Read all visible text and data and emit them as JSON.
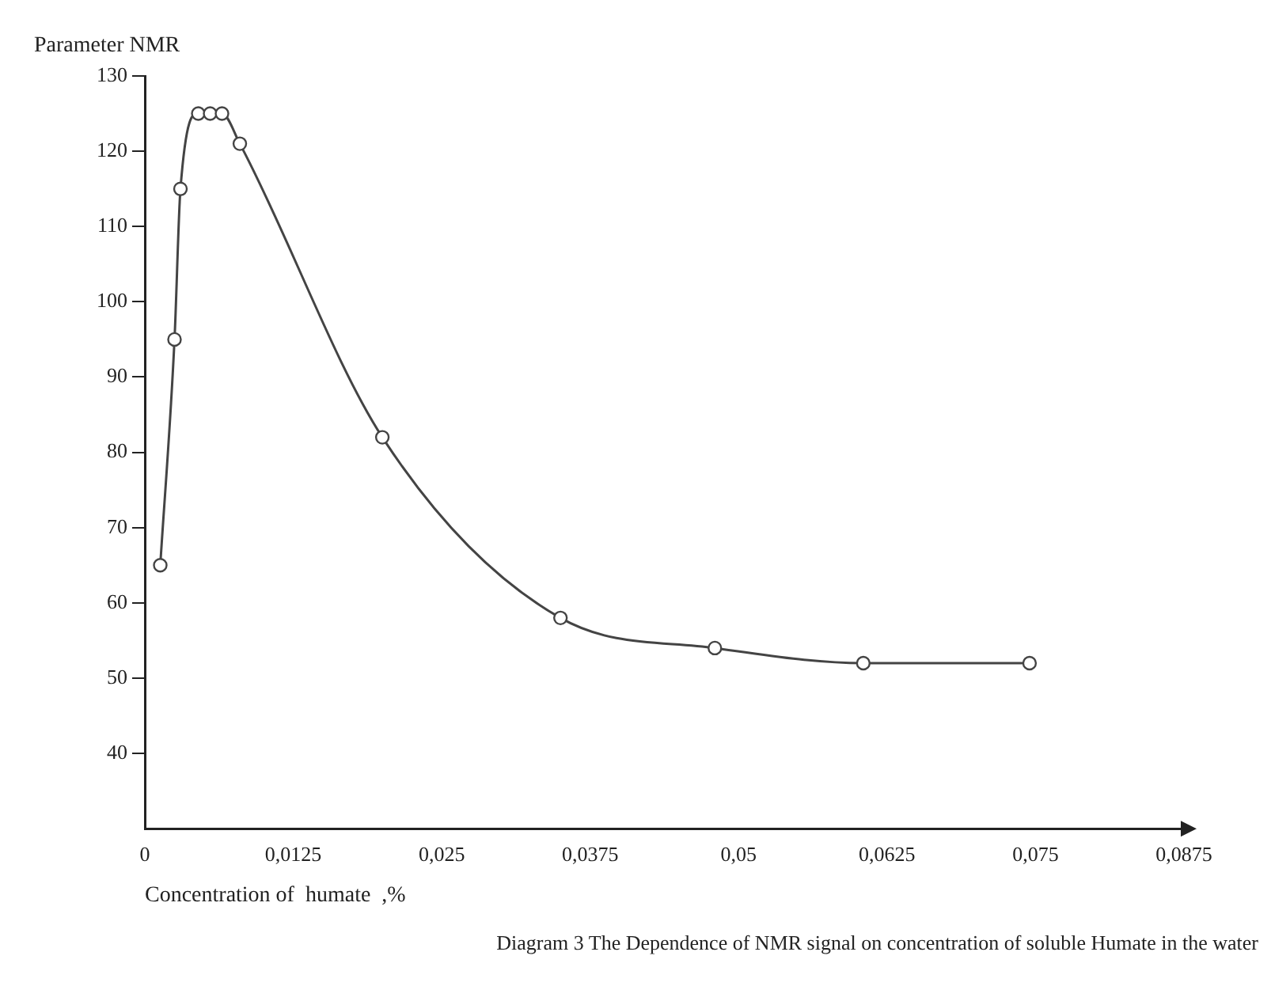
{
  "chart_data": {
    "type": "line",
    "ylabel": "Parameter NMR",
    "xlabel": "Concentration of  humate  ,%",
    "annotations": [
      "Diagram 3  The Dependence of NMR signal on concentration of soluble Humate in the water"
    ],
    "series": [
      {
        "color": "#444444",
        "x": [
          0.0013,
          0.0025,
          0.003,
          0.0045,
          0.0055,
          0.0065,
          0.008,
          0.02,
          0.035,
          0.048,
          0.0605,
          0.0745
        ],
        "values": [
          65,
          95,
          115,
          125,
          125,
          125,
          121,
          82,
          58,
          54,
          52,
          52
        ]
      }
    ],
    "xlim": [
      0,
      0.0875
    ],
    "xticks": [
      0,
      {
        "value": 0.0125,
        "label": "0,0125"
      },
      {
        "value": 0.025,
        "label": "0,025"
      },
      {
        "value": 0.0375,
        "label": "0,0375"
      },
      {
        "value": 0.05,
        "label": "0,05"
      },
      {
        "value": 0.0625,
        "label": "0,0625"
      },
      {
        "value": 0.075,
        "label": "0,075"
      },
      {
        "value": 0.0875,
        "label": "0,0875"
      }
    ],
    "ylim": [
      30,
      130
    ],
    "yticks": [
      40,
      50,
      60,
      70,
      80,
      90,
      100,
      110,
      120,
      130
    ],
    "grid": false,
    "legend": false,
    "marker": "circle",
    "line_style": "solid"
  }
}
